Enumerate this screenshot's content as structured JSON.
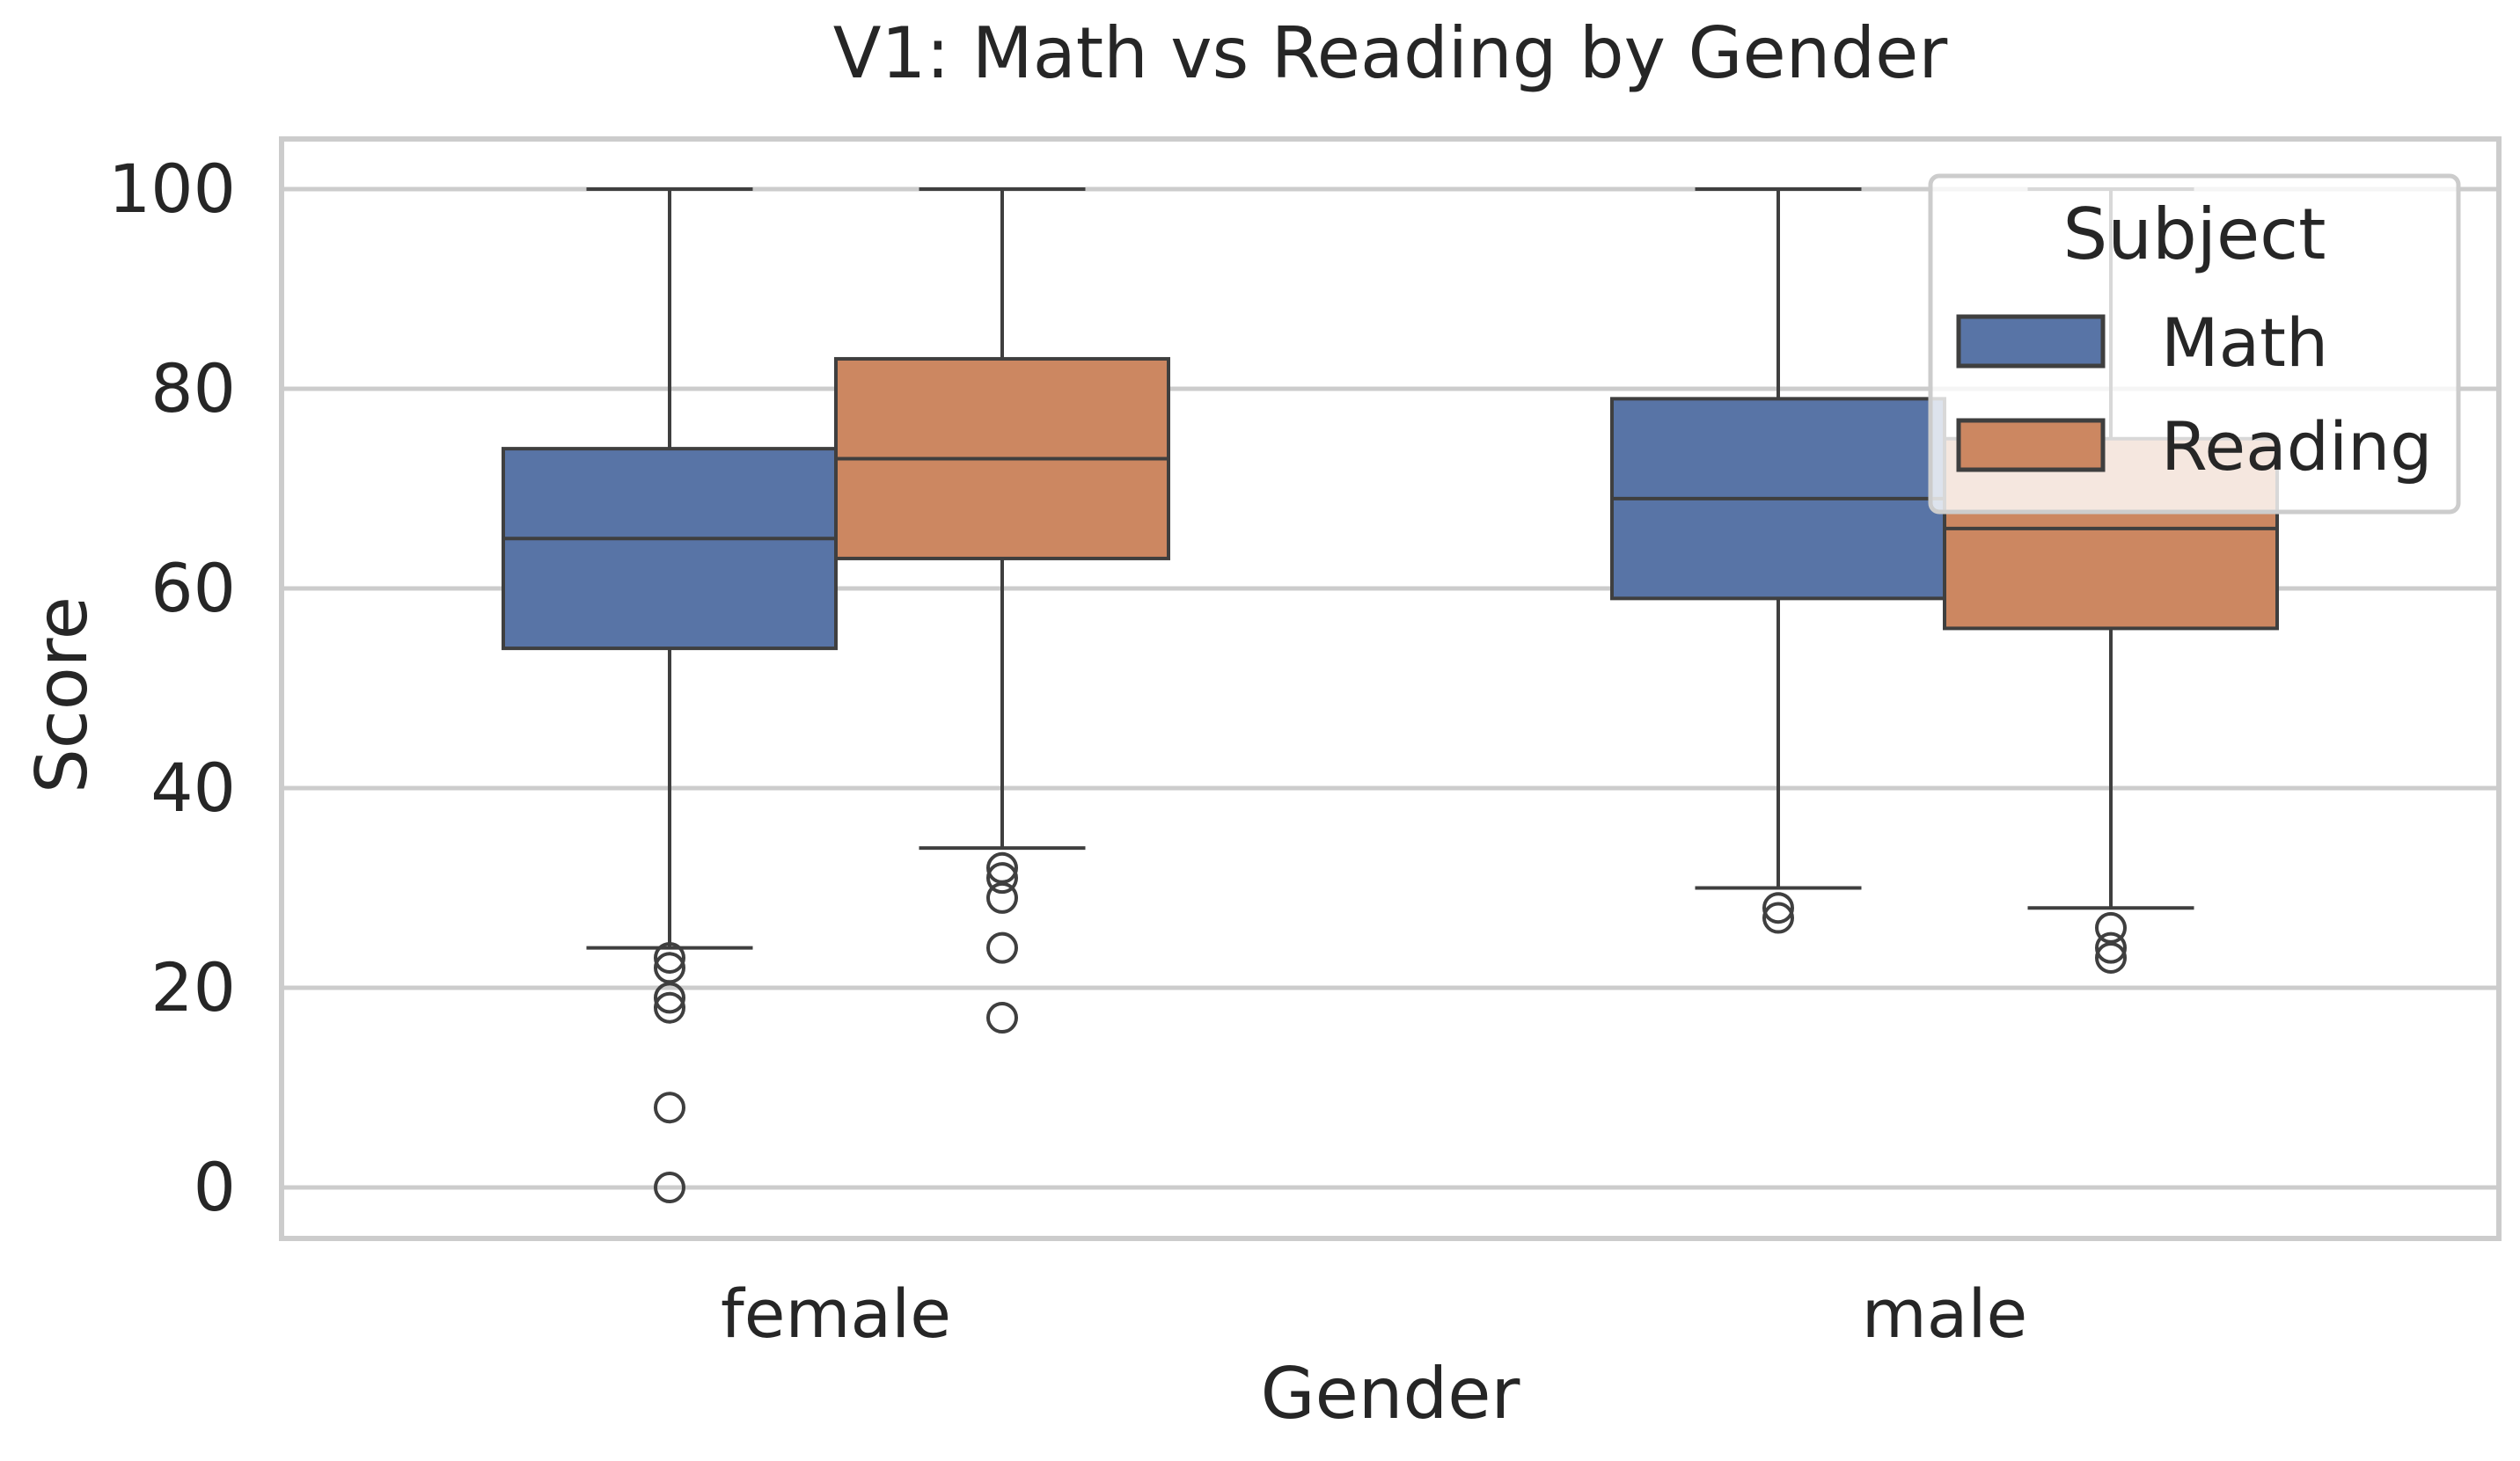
{
  "chart_data": {
    "type": "box",
    "title": "V1: Math vs Reading by Gender",
    "xlabel": "Gender",
    "ylabel": "Score",
    "ylim": [
      -5,
      105
    ],
    "yticks": [
      0,
      20,
      40,
      60,
      80,
      100
    ],
    "grid": true,
    "legend_position": "top-right",
    "legend_title": "Subject",
    "categories": [
      "female",
      "male"
    ],
    "series": [
      {
        "name": "Math",
        "color": "#5874a6",
        "boxes": [
          {
            "whisker_low": 24,
            "q1": 54,
            "median": 65,
            "q3": 74,
            "whisker_high": 100,
            "outliers": [
              23,
              22,
              19,
              18,
              8,
              0
            ]
          },
          {
            "whisker_low": 30,
            "q1": 59,
            "median": 69,
            "q3": 79,
            "whisker_high": 100,
            "outliers": [
              28,
              27
            ]
          }
        ]
      },
      {
        "name": "Reading",
        "color": "#cc8761",
        "boxes": [
          {
            "whisker_low": 34,
            "q1": 63,
            "median": 73,
            "q3": 83,
            "whisker_high": 100,
            "outliers": [
              32,
              31,
              29,
              24,
              17
            ]
          },
          {
            "whisker_low": 28,
            "q1": 56,
            "median": 66,
            "q3": 75,
            "whisker_high": 100,
            "outliers": [
              26,
              24,
              23
            ]
          }
        ]
      }
    ]
  }
}
